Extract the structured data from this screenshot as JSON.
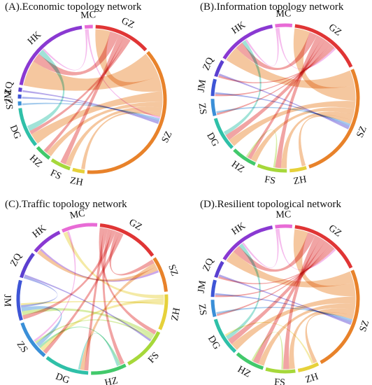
{
  "panels": [
    {
      "title": "(A).Economic topology network",
      "nodes": [
        {
          "label": "MC",
          "color": "#e86bd6",
          "span": 2
        },
        {
          "label": "GZ",
          "color": "#e03535",
          "span": 14
        },
        {
          "label": "SZ",
          "color": "#e8822a",
          "span": 42
        },
        {
          "label": "ZH",
          "color": "#e6d13a",
          "span": 3
        },
        {
          "label": "FS",
          "color": "#a6d83a",
          "span": 5
        },
        {
          "label": "HZ",
          "color": "#42c96b",
          "span": 4
        },
        {
          "label": "DG",
          "color": "#2fc0a8",
          "span": 10
        },
        {
          "label": "ZS",
          "color": "#3a8fd8",
          "span": 1
        },
        {
          "label": "JM",
          "color": "#3e55d6",
          "span": 1
        },
        {
          "label": "ZQ",
          "color": "#5b3fd0",
          "span": 1
        },
        {
          "label": "HK",
          "color": "#8a39d2",
          "span": 22
        }
      ],
      "links": [
        [
          2,
          10,
          14
        ],
        [
          2,
          1,
          8
        ],
        [
          2,
          6,
          6
        ],
        [
          2,
          5,
          3
        ],
        [
          2,
          4,
          3
        ],
        [
          2,
          3,
          2
        ],
        [
          1,
          10,
          5
        ],
        [
          1,
          4,
          3
        ],
        [
          1,
          5,
          2
        ],
        [
          1,
          6,
          2
        ],
        [
          6,
          10,
          3
        ],
        [
          0,
          10,
          1
        ],
        [
          0,
          2,
          1
        ],
        [
          7,
          2,
          1
        ],
        [
          8,
          2,
          1
        ],
        [
          9,
          2,
          1
        ]
      ]
    },
    {
      "title": "(B).Information topology network",
      "nodes": [
        {
          "label": "MC",
          "color": "#e86bd6",
          "span": 4
        },
        {
          "label": "GZ",
          "color": "#e03535",
          "span": 17
        },
        {
          "label": "SZ",
          "color": "#e8822a",
          "span": 28
        },
        {
          "label": "ZH",
          "color": "#e6d13a",
          "span": 4
        },
        {
          "label": "FS",
          "color": "#a6d83a",
          "span": 7
        },
        {
          "label": "HZ",
          "color": "#42c96b",
          "span": 6
        },
        {
          "label": "DG",
          "color": "#2fc0a8",
          "span": 8
        },
        {
          "label": "ZS",
          "color": "#3a8fd8",
          "span": 4
        },
        {
          "label": "JM",
          "color": "#3e55d6",
          "span": 4
        },
        {
          "label": "ZQ",
          "color": "#5b3fd0",
          "span": 4
        },
        {
          "label": "HK",
          "color": "#8a39d2",
          "span": 14
        }
      ],
      "links": [
        [
          2,
          10,
          8
        ],
        [
          2,
          1,
          8
        ],
        [
          2,
          6,
          4
        ],
        [
          2,
          5,
          3
        ],
        [
          2,
          4,
          3
        ],
        [
          2,
          3,
          2
        ],
        [
          1,
          10,
          4
        ],
        [
          1,
          4,
          3
        ],
        [
          1,
          5,
          2
        ],
        [
          1,
          6,
          3
        ],
        [
          1,
          7,
          1
        ],
        [
          1,
          8,
          1
        ],
        [
          1,
          9,
          1
        ],
        [
          6,
          10,
          2
        ],
        [
          0,
          10,
          1
        ],
        [
          0,
          1,
          1
        ],
        [
          7,
          2,
          1
        ],
        [
          8,
          2,
          1
        ],
        [
          9,
          2,
          1
        ],
        [
          4,
          5,
          1
        ]
      ]
    },
    {
      "title": "(C).Traffic topology network",
      "nodes": [
        {
          "label": "GZ",
          "color": "#e03535",
          "span": 14
        },
        {
          "label": "SZ",
          "color": "#e8822a",
          "span": 8
        },
        {
          "label": "ZH",
          "color": "#e6d13a",
          "span": 8
        },
        {
          "label": "FS",
          "color": "#a6d83a",
          "span": 10
        },
        {
          "label": "HZ",
          "color": "#42c96b",
          "span": 8
        },
        {
          "label": "DG",
          "color": "#2fc0a8",
          "span": 10
        },
        {
          "label": "ZS",
          "color": "#3a8fd8",
          "span": 9
        },
        {
          "label": "JM",
          "color": "#3e55d6",
          "span": 9
        },
        {
          "label": "ZQ",
          "color": "#5b3fd0",
          "span": 6
        },
        {
          "label": "HK",
          "color": "#8a39d2",
          "span": 7
        },
        {
          "label": "MC",
          "color": "#e86bd6",
          "span": 8
        }
      ],
      "links": [
        [
          0,
          3,
          2
        ],
        [
          0,
          5,
          2
        ],
        [
          0,
          4,
          2
        ],
        [
          0,
          7,
          2
        ],
        [
          0,
          1,
          2
        ],
        [
          0,
          6,
          2
        ],
        [
          1,
          5,
          2
        ],
        [
          1,
          9,
          2
        ],
        [
          2,
          10,
          2
        ],
        [
          2,
          6,
          2
        ],
        [
          3,
          7,
          2
        ],
        [
          4,
          6,
          1
        ],
        [
          6,
          7,
          2
        ],
        [
          7,
          8,
          1
        ],
        [
          5,
          4,
          1
        ],
        [
          3,
          6,
          1
        ],
        [
          9,
          1,
          1
        ],
        [
          10,
          6,
          1
        ],
        [
          8,
          3,
          1
        ],
        [
          2,
          7,
          1
        ]
      ]
    },
    {
      "title": "(D).Resilient topological network",
      "nodes": [
        {
          "label": "MC",
          "color": "#e86bd6",
          "span": 4
        },
        {
          "label": "GZ",
          "color": "#e03535",
          "span": 17
        },
        {
          "label": "SZ",
          "color": "#e8822a",
          "span": 25
        },
        {
          "label": "ZH",
          "color": "#e6d13a",
          "span": 5
        },
        {
          "label": "FS",
          "color": "#a6d83a",
          "span": 7
        },
        {
          "label": "HZ",
          "color": "#42c96b",
          "span": 7
        },
        {
          "label": "DG",
          "color": "#2fc0a8",
          "span": 9
        },
        {
          "label": "ZS",
          "color": "#3a8fd8",
          "span": 4
        },
        {
          "label": "JM",
          "color": "#3e55d6",
          "span": 4
        },
        {
          "label": "ZQ",
          "color": "#5b3fd0",
          "span": 4
        },
        {
          "label": "HK",
          "color": "#8a39d2",
          "span": 14
        }
      ],
      "links": [
        [
          2,
          10,
          6
        ],
        [
          2,
          1,
          7
        ],
        [
          2,
          6,
          4
        ],
        [
          2,
          5,
          3
        ],
        [
          2,
          4,
          3
        ],
        [
          2,
          3,
          2
        ],
        [
          1,
          10,
          4
        ],
        [
          1,
          4,
          3
        ],
        [
          1,
          5,
          3
        ],
        [
          1,
          6,
          3
        ],
        [
          1,
          7,
          1
        ],
        [
          1,
          8,
          1
        ],
        [
          1,
          9,
          1
        ],
        [
          6,
          10,
          2
        ],
        [
          0,
          10,
          1
        ],
        [
          0,
          1,
          1
        ],
        [
          7,
          2,
          1
        ],
        [
          8,
          2,
          1
        ],
        [
          9,
          2,
          1
        ],
        [
          4,
          5,
          1
        ],
        [
          3,
          6,
          1
        ]
      ]
    }
  ]
}
